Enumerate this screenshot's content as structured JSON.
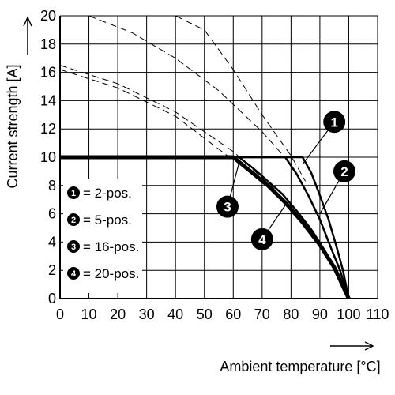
{
  "chart_data": {
    "type": "line",
    "title": "",
    "xlabel": "Ambient temperature [°C]",
    "ylabel": "Current strength [A]",
    "xlim": [
      0,
      110
    ],
    "ylim": [
      0,
      20
    ],
    "x_ticks": [
      "0",
      "10",
      "20",
      "30",
      "40",
      "50",
      "60",
      "70",
      "80",
      "90",
      "100",
      "110"
    ],
    "y_ticks": [
      "0",
      "2",
      "4",
      "6",
      "8",
      "10",
      "12",
      "14",
      "16",
      "18",
      "20"
    ],
    "grid": true,
    "legend_position": "bottom-left",
    "legend": [
      {
        "id": "1",
        "label": "= 2-pos."
      },
      {
        "id": "2",
        "label": "= 5-pos."
      },
      {
        "id": "3",
        "label": "= 16-pos."
      },
      {
        "id": "4",
        "label": "= 20-pos."
      }
    ],
    "series": [
      {
        "id": "1",
        "x": [
          0,
          84,
          87,
          90,
          93,
          96,
          98,
          100
        ],
        "y": [
          10,
          10,
          8.9,
          7.3,
          5.6,
          3.5,
          2.0,
          0
        ]
      },
      {
        "id": "2",
        "x": [
          0,
          78,
          82,
          86,
          90,
          94,
          97,
          100
        ],
        "y": [
          10,
          10,
          8.8,
          7.3,
          5.6,
          3.5,
          2.0,
          0
        ]
      },
      {
        "id": "3",
        "x": [
          0,
          62,
          67,
          72,
          77,
          82,
          87,
          92,
          96,
          100
        ],
        "y": [
          10,
          10,
          9.2,
          8.3,
          7.4,
          6.2,
          4.9,
          3.3,
          1.8,
          0
        ]
      },
      {
        "id": "4",
        "x": [
          0,
          60,
          66,
          72,
          78,
          84,
          90,
          95,
          100
        ],
        "y": [
          10,
          10,
          9.0,
          8.0,
          6.8,
          5.4,
          3.8,
          2.2,
          0
        ]
      }
    ],
    "extrapolated_series": [
      {
        "id": "1",
        "x": [
          40,
          50,
          60,
          70,
          80,
          85
        ],
        "y": [
          20,
          19.0,
          16.2,
          13.0,
          10.1,
          8.3
        ]
      },
      {
        "id": "2",
        "x": [
          10,
          25,
          40,
          55,
          70,
          80
        ],
        "y": [
          20,
          18.8,
          17.0,
          14.7,
          11.8,
          9.5
        ]
      },
      {
        "id": "3",
        "x": [
          0,
          20,
          40,
          60,
          75
        ],
        "y": [
          16.5,
          15.2,
          13.2,
          10.4,
          7.6
        ]
      },
      {
        "id": "4",
        "x": [
          0,
          20,
          40,
          58
        ],
        "y": [
          16.2,
          14.9,
          12.9,
          10.1
        ]
      }
    ],
    "callouts": [
      {
        "id": "1",
        "x": 95,
        "y": 12.5,
        "target_x": 84,
        "target_y": 9.5
      },
      {
        "id": "2",
        "x": 98.5,
        "y": 9.0,
        "target_x": 90,
        "target_y": 6.0
      },
      {
        "id": "3",
        "x": 58,
        "y": 6.5,
        "target_x": 62,
        "target_y": 9.6
      },
      {
        "id": "4",
        "x": 70,
        "y": 4.2,
        "target_x": 78,
        "target_y": 6.6
      }
    ],
    "colors": {
      "curve": "#000000",
      "grid": "#000000",
      "callout_fill": "#000000",
      "callout_text": "#ffffff"
    }
  }
}
